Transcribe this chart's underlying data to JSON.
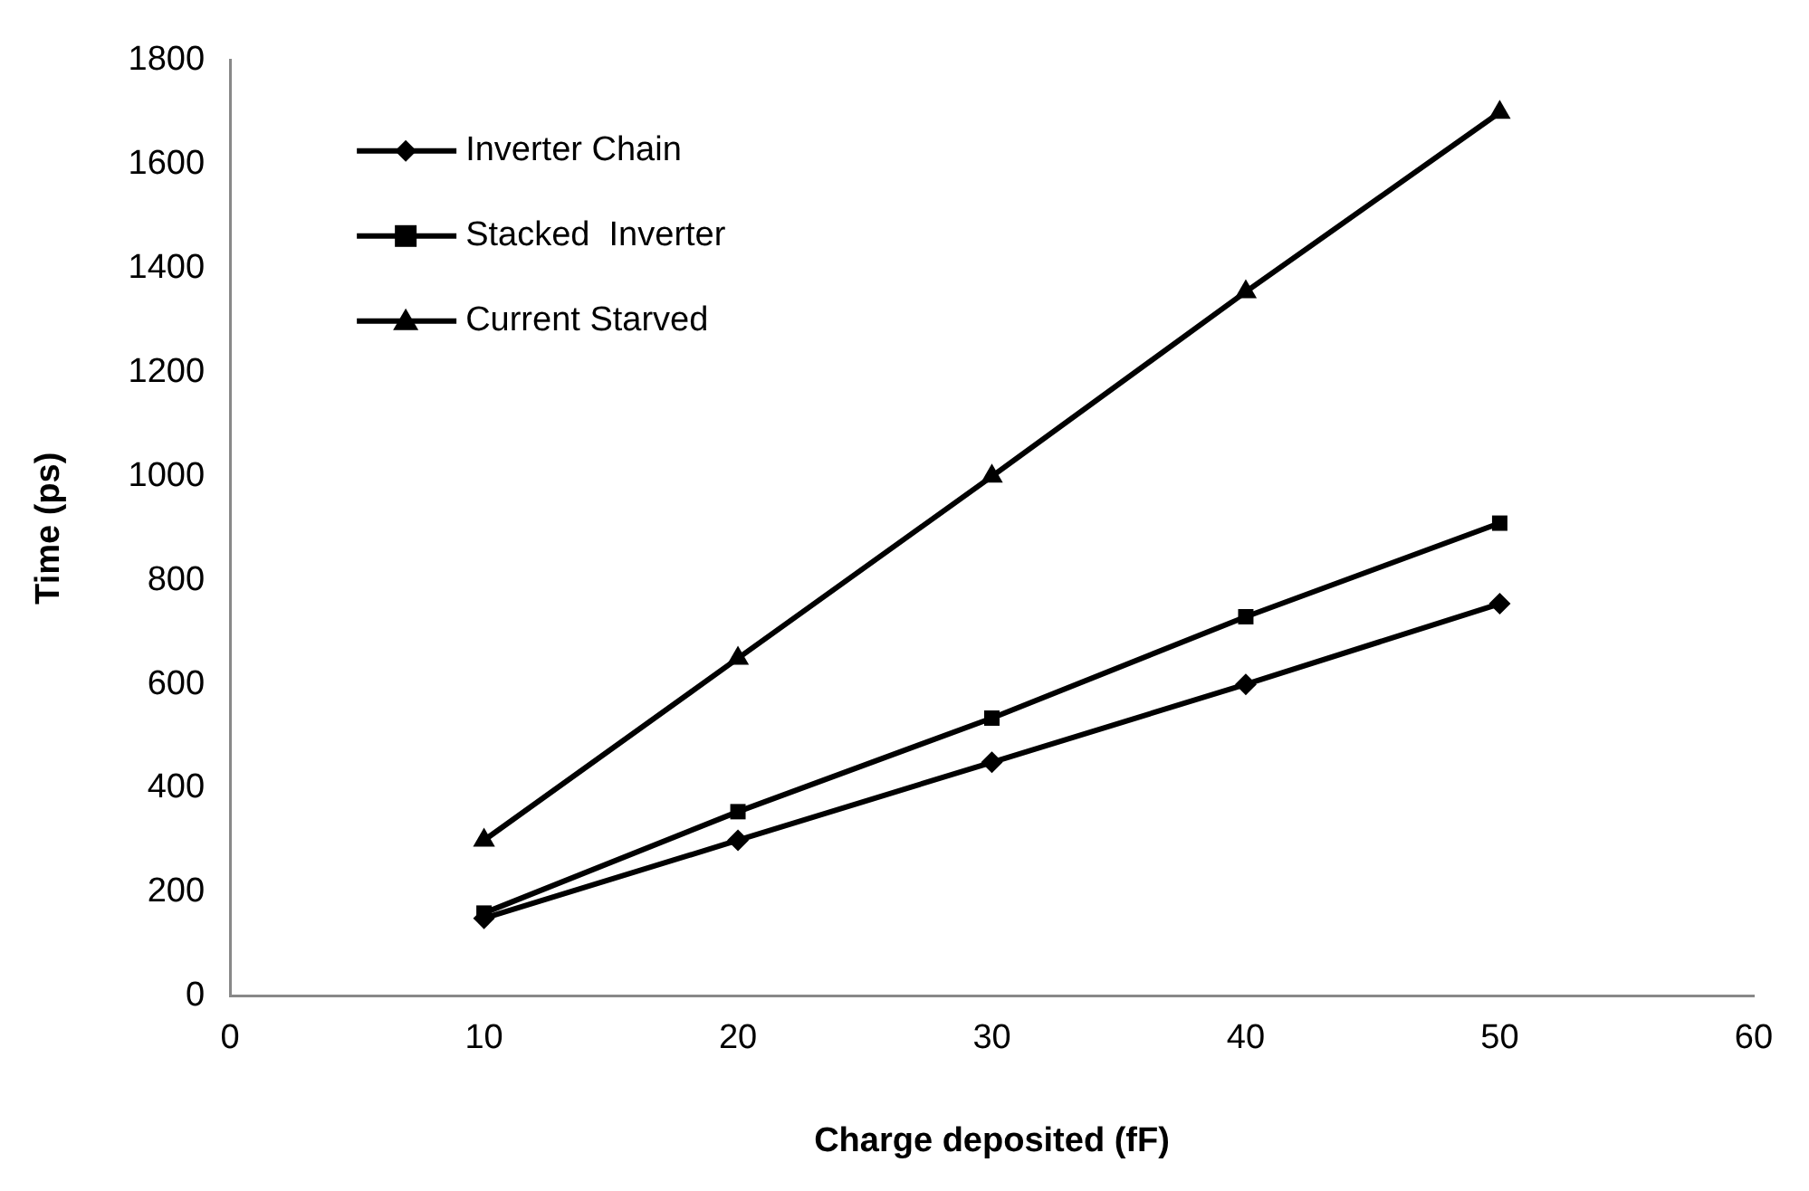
{
  "chart_data": {
    "type": "line",
    "xlabel": "Charge deposited (fF)",
    "ylabel": "Time (ps)",
    "x": [
      10,
      20,
      30,
      40,
      50
    ],
    "series": [
      {
        "name": "Inverter Chain",
        "color": "#000000",
        "marker": "diamond",
        "values": [
          150,
          300,
          450,
          600,
          755
        ]
      },
      {
        "name": "Stacked  Inverter",
        "color": "#000000",
        "marker": "square",
        "values": [
          160,
          355,
          535,
          730,
          910
        ]
      },
      {
        "name": "Current Starved",
        "color": "#000000",
        "marker": "triangle",
        "values": [
          300,
          650,
          1000,
          1355,
          1700
        ]
      }
    ],
    "xlim": [
      0,
      60
    ],
    "xticks": [
      0,
      10,
      20,
      30,
      40,
      50,
      60
    ],
    "ylim": [
      0,
      1800
    ],
    "yticks": [
      0,
      200,
      400,
      600,
      800,
      1000,
      1200,
      1400,
      1600,
      1800
    ],
    "grid": false,
    "legend": "top left",
    "line_style": "solid"
  }
}
